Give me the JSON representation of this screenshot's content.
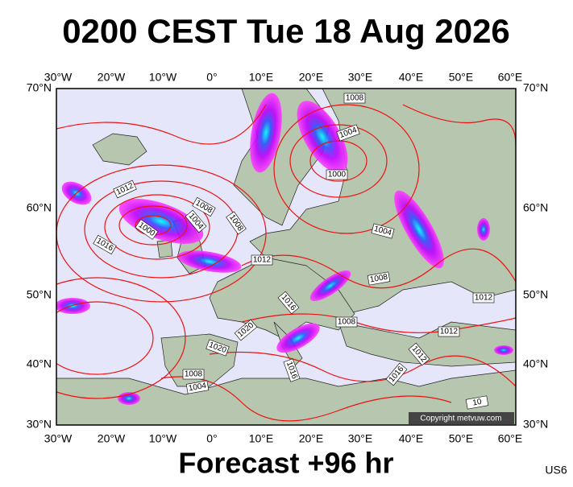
{
  "header": {
    "title": "0200 CEST Tue 18 Aug 2026"
  },
  "map": {
    "lon_labels": [
      "30°W",
      "20°W",
      "10°W",
      "0°",
      "10°E",
      "20°E",
      "30°E",
      "40°E",
      "50°E",
      "60°E"
    ],
    "lat_labels": [
      "70°N",
      "60°N",
      "50°N",
      "40°N",
      "30°N"
    ],
    "isobar_labels": [
      "1008",
      "1004",
      "1000",
      "1012",
      "1008",
      "1004",
      "1000",
      "1008",
      "1016",
      "1004",
      "1012",
      "1008",
      "1016",
      "1012",
      "1008",
      "1020",
      "1012",
      "1020",
      "1012",
      "1016",
      "1008",
      "1016",
      "1004",
      "10"
    ],
    "copyright": "Copyright metvuw.com"
  },
  "footer": {
    "caption": "Forecast +96 hr",
    "code": "US6"
  }
}
